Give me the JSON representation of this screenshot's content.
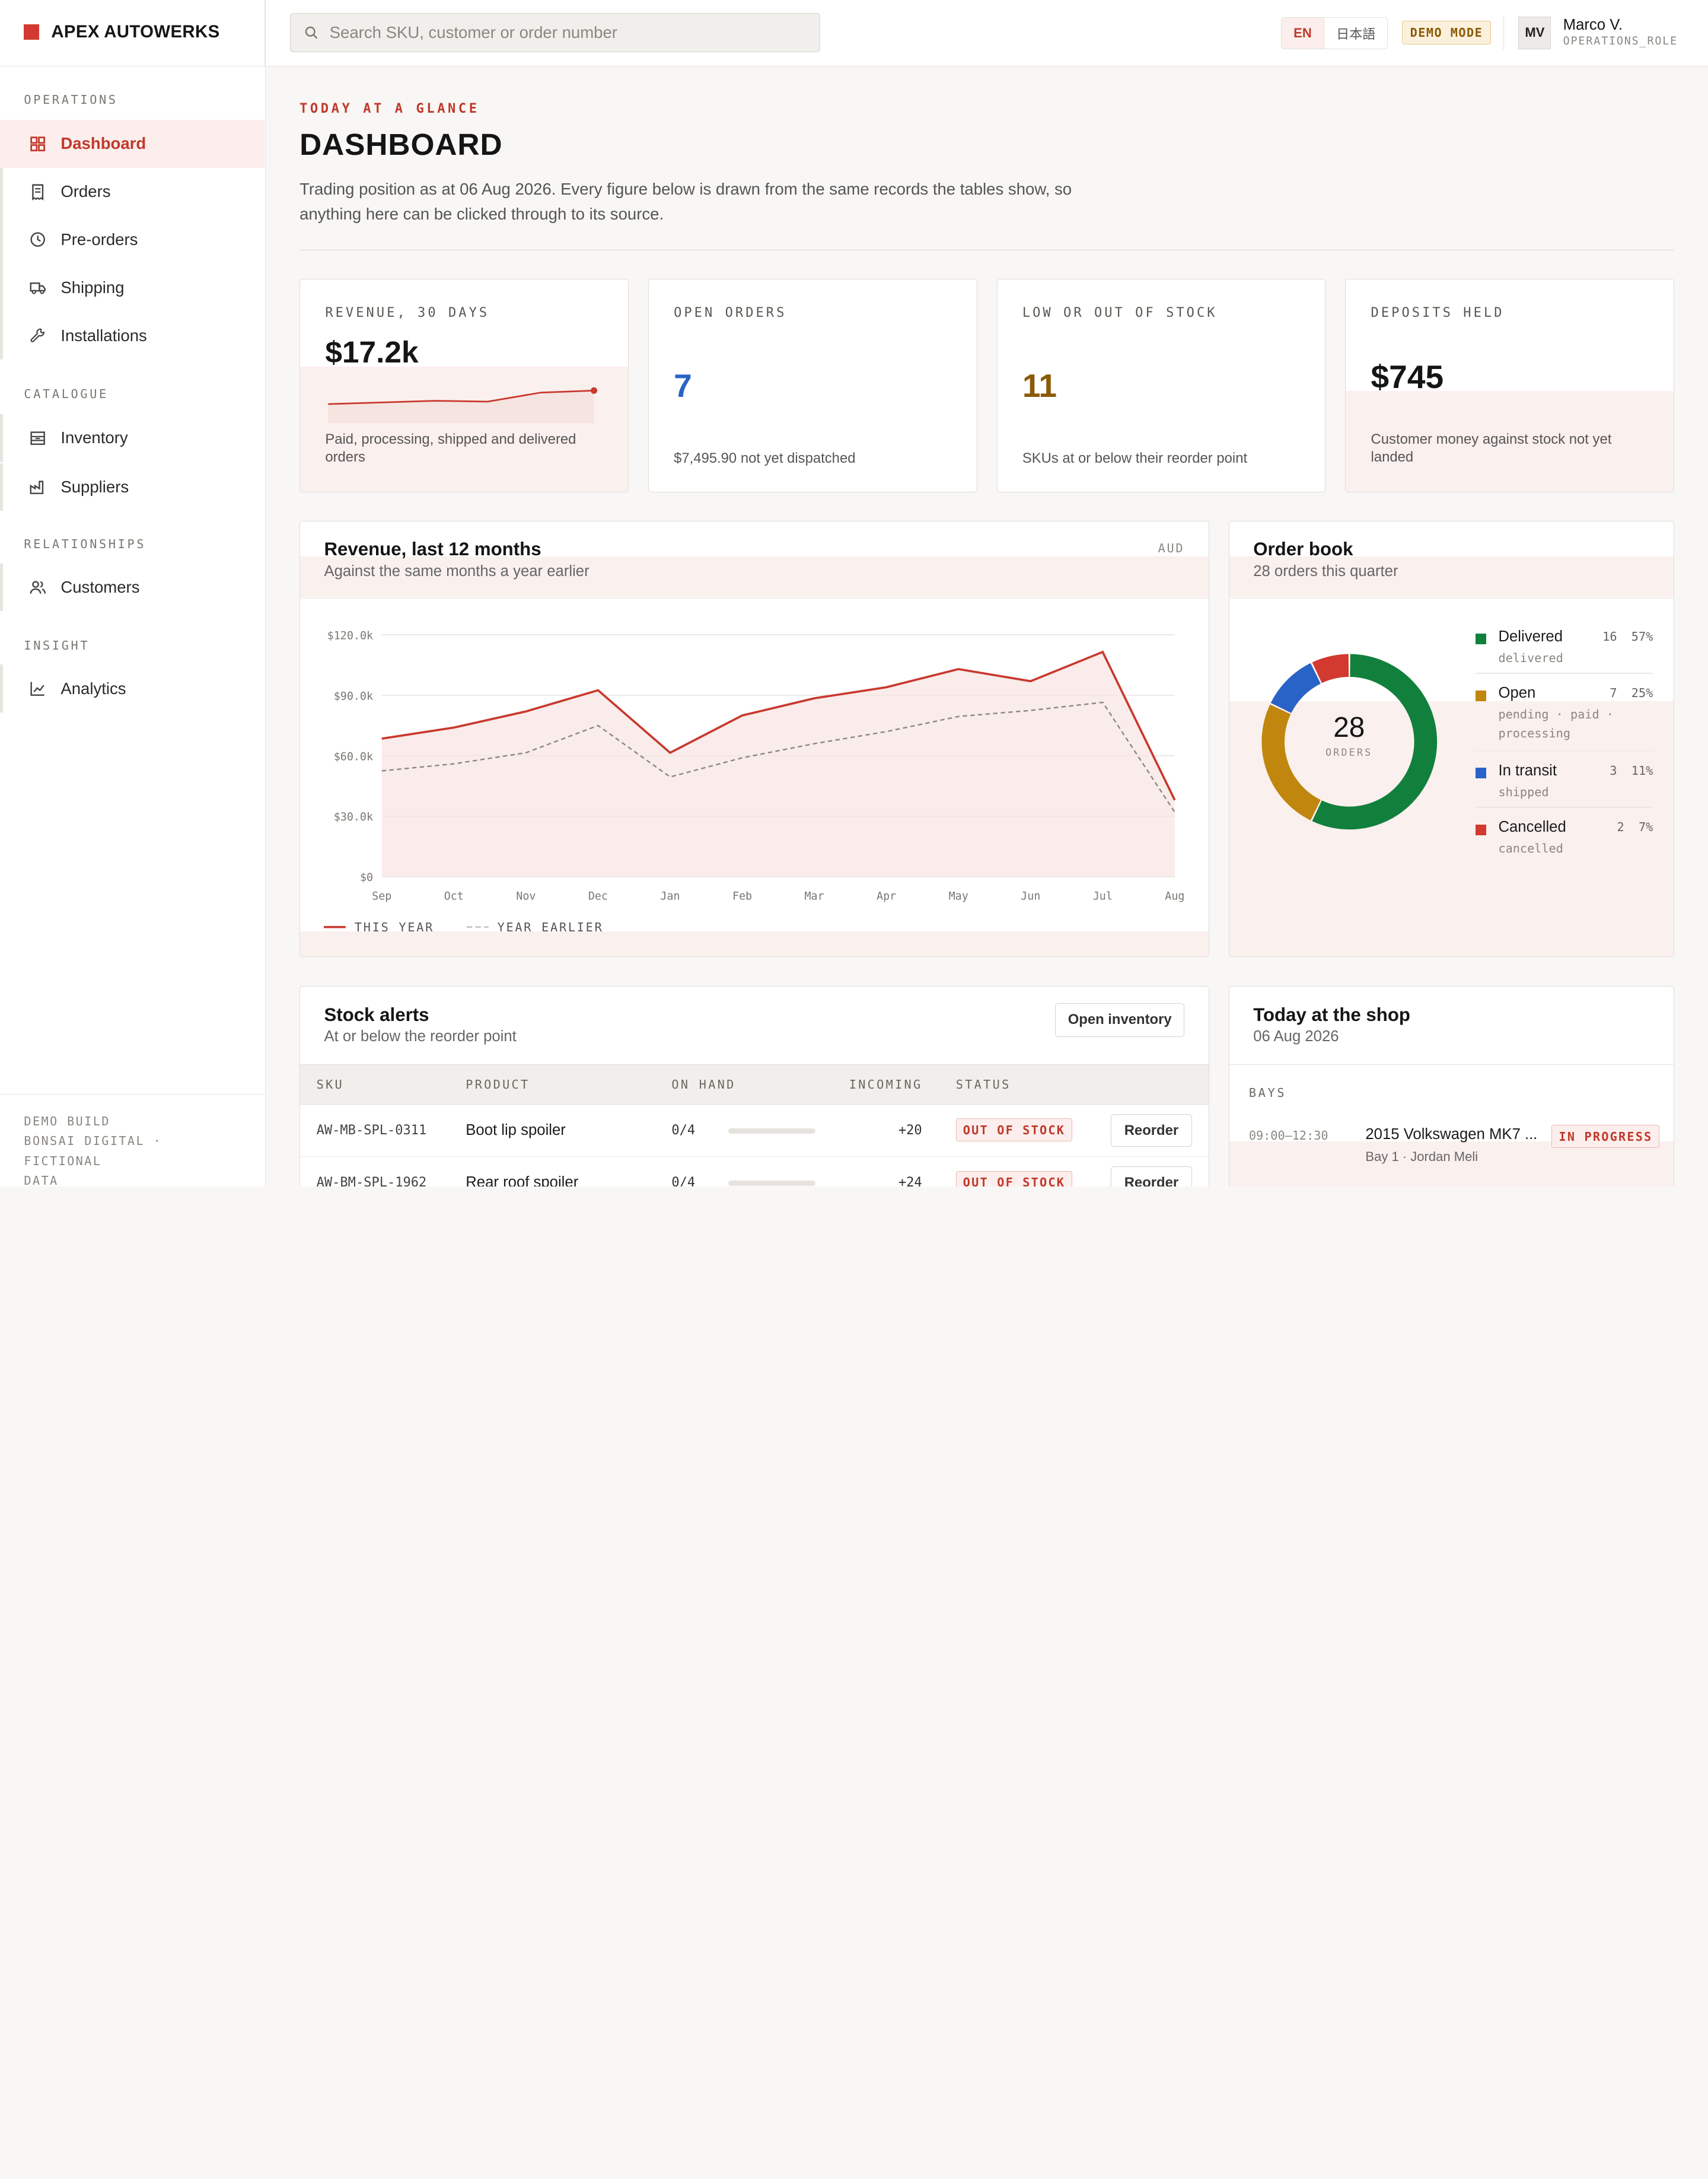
{
  "brand": {
    "name": "APEX AUTOWERKS",
    "color": "#d23a30"
  },
  "search": {
    "placeholder": "Search SKU, customer or order number"
  },
  "languages": {
    "active": "EN",
    "other": "日本語"
  },
  "demo_badge": "DEMO MODE",
  "user": {
    "initials": "MV",
    "name": "Marco V.",
    "role": "OPERATIONS_ROLE"
  },
  "sidebar": {
    "sections": {
      "operations": "OPERATIONS",
      "catalogue": "CATALOGUE",
      "relationships": "RELATIONSHIPS",
      "insight": "INSIGHT"
    },
    "items": {
      "dashboard": "Dashboard",
      "orders": "Orders",
      "preorders": "Pre-orders",
      "shipping": "Shipping",
      "installations": "Installations",
      "inventory": "Inventory",
      "suppliers": "Suppliers",
      "customers": "Customers",
      "analytics": "Analytics"
    },
    "footer": {
      "line1": "DEMO BUILD",
      "line2": "BONSAI DIGITAL · FICTIONAL",
      "line3": "DATA"
    }
  },
  "page": {
    "eyebrow": "TODAY AT A GLANCE",
    "title": "DASHBOARD",
    "description": "Trading position as at 06 Aug 2026. Every figure below is drawn from the same records the tables show, so anything here can be clicked through to its source."
  },
  "kpis": {
    "revenue": {
      "label": "REVENUE, 30 DAYS",
      "value": "$17.2k",
      "foot": "Paid, processing, shipped and delivered orders",
      "sparkline": [
        9,
        10,
        11,
        10.5,
        16,
        17.2
      ]
    },
    "open_orders": {
      "label": "OPEN ORDERS",
      "value": "7",
      "foot": "$7,495.90 not yet dispatched",
      "color": "#2a63c7"
    },
    "stock": {
      "label": "LOW OR OUT OF STOCK",
      "value": "11",
      "foot": "SKUs at or below their reorder point",
      "color": "#8a5a05"
    },
    "deposits": {
      "label": "DEPOSITS HELD",
      "value": "$745",
      "foot": "Customer money against stock not yet landed"
    }
  },
  "revenue_panel": {
    "title": "Revenue, last 12 months",
    "subtitle": "Against the same months a year earlier",
    "unit": "AUD"
  },
  "chart_data": {
    "type": "line",
    "title": "Revenue, last 12 months",
    "categories": [
      "Sep",
      "Oct",
      "Nov",
      "Dec",
      "Jan",
      "Feb",
      "Mar",
      "Apr",
      "May",
      "Jun",
      "Jul",
      "Aug"
    ],
    "series": [
      {
        "name": "THIS YEAR",
        "values": [
          68500,
          74000,
          82000,
          92500,
          61500,
          80000,
          88500,
          94000,
          103000,
          97000,
          111500,
          38000
        ],
        "color": "#c8392e"
      },
      {
        "name": "YEAR EARLIER",
        "values": [
          52500,
          56000,
          61500,
          75000,
          49500,
          59000,
          66000,
          72000,
          79500,
          82500,
          86500,
          32000
        ],
        "color": "#8a8781"
      }
    ],
    "yticks": [
      "$120.0k",
      "$90.0k",
      "$60.0k",
      "$30.0k",
      "$0"
    ],
    "ylim": [
      0,
      120000
    ],
    "grid": true,
    "legend_position": "bottom-left"
  },
  "order_book": {
    "title": "Order book",
    "subtitle": "28 orders this quarter",
    "total": "28",
    "total_label": "ORDERS",
    "segments": [
      {
        "name": "Delivered",
        "count": "16",
        "pct": "57%",
        "sub": "delivered",
        "value": 16,
        "color": "#12803d"
      },
      {
        "name": "Open",
        "count": "7",
        "pct": "25%",
        "sub": "pending · paid · processing",
        "value": 7,
        "color": "#c0860e"
      },
      {
        "name": "In transit",
        "count": "3",
        "pct": "11%",
        "sub": "shipped",
        "value": 3,
        "color": "#2a63c7"
      },
      {
        "name": "Cancelled",
        "count": "2",
        "pct": "7%",
        "sub": "cancelled",
        "value": 2,
        "color": "#d23a30"
      }
    ]
  },
  "stock_alerts": {
    "title": "Stock alerts",
    "subtitle": "At or below the reorder point",
    "button": "Open inventory",
    "columns": [
      "SKU",
      "PRODUCT",
      "ON HAND",
      "INCOMING",
      "STATUS"
    ],
    "rows": [
      {
        "sku": "AW-MB-SPL-0311",
        "product": "Boot lip spoiler",
        "on_hand": "0/4",
        "incoming": "+20",
        "status": "OUT OF STOCK",
        "action": "Reorder",
        "level": 0
      },
      {
        "sku": "AW-BM-SPL-1962",
        "product": "Rear roof spoiler",
        "on_hand": "0/4",
        "incoming": "+24",
        "status": "OUT OF STOCK",
        "action": "Reorder",
        "level": 0
      }
    ]
  },
  "shop_today": {
    "title": "Today at the shop",
    "date": "06 Aug 2026",
    "section": "BAYS",
    "items": [
      {
        "time": "09:00–12:30",
        "vehicle": "2015 Volkswagen MK7 ...",
        "detail": "Bay 1 · Jordan Meli",
        "status": "IN PROGRESS"
      }
    ]
  }
}
